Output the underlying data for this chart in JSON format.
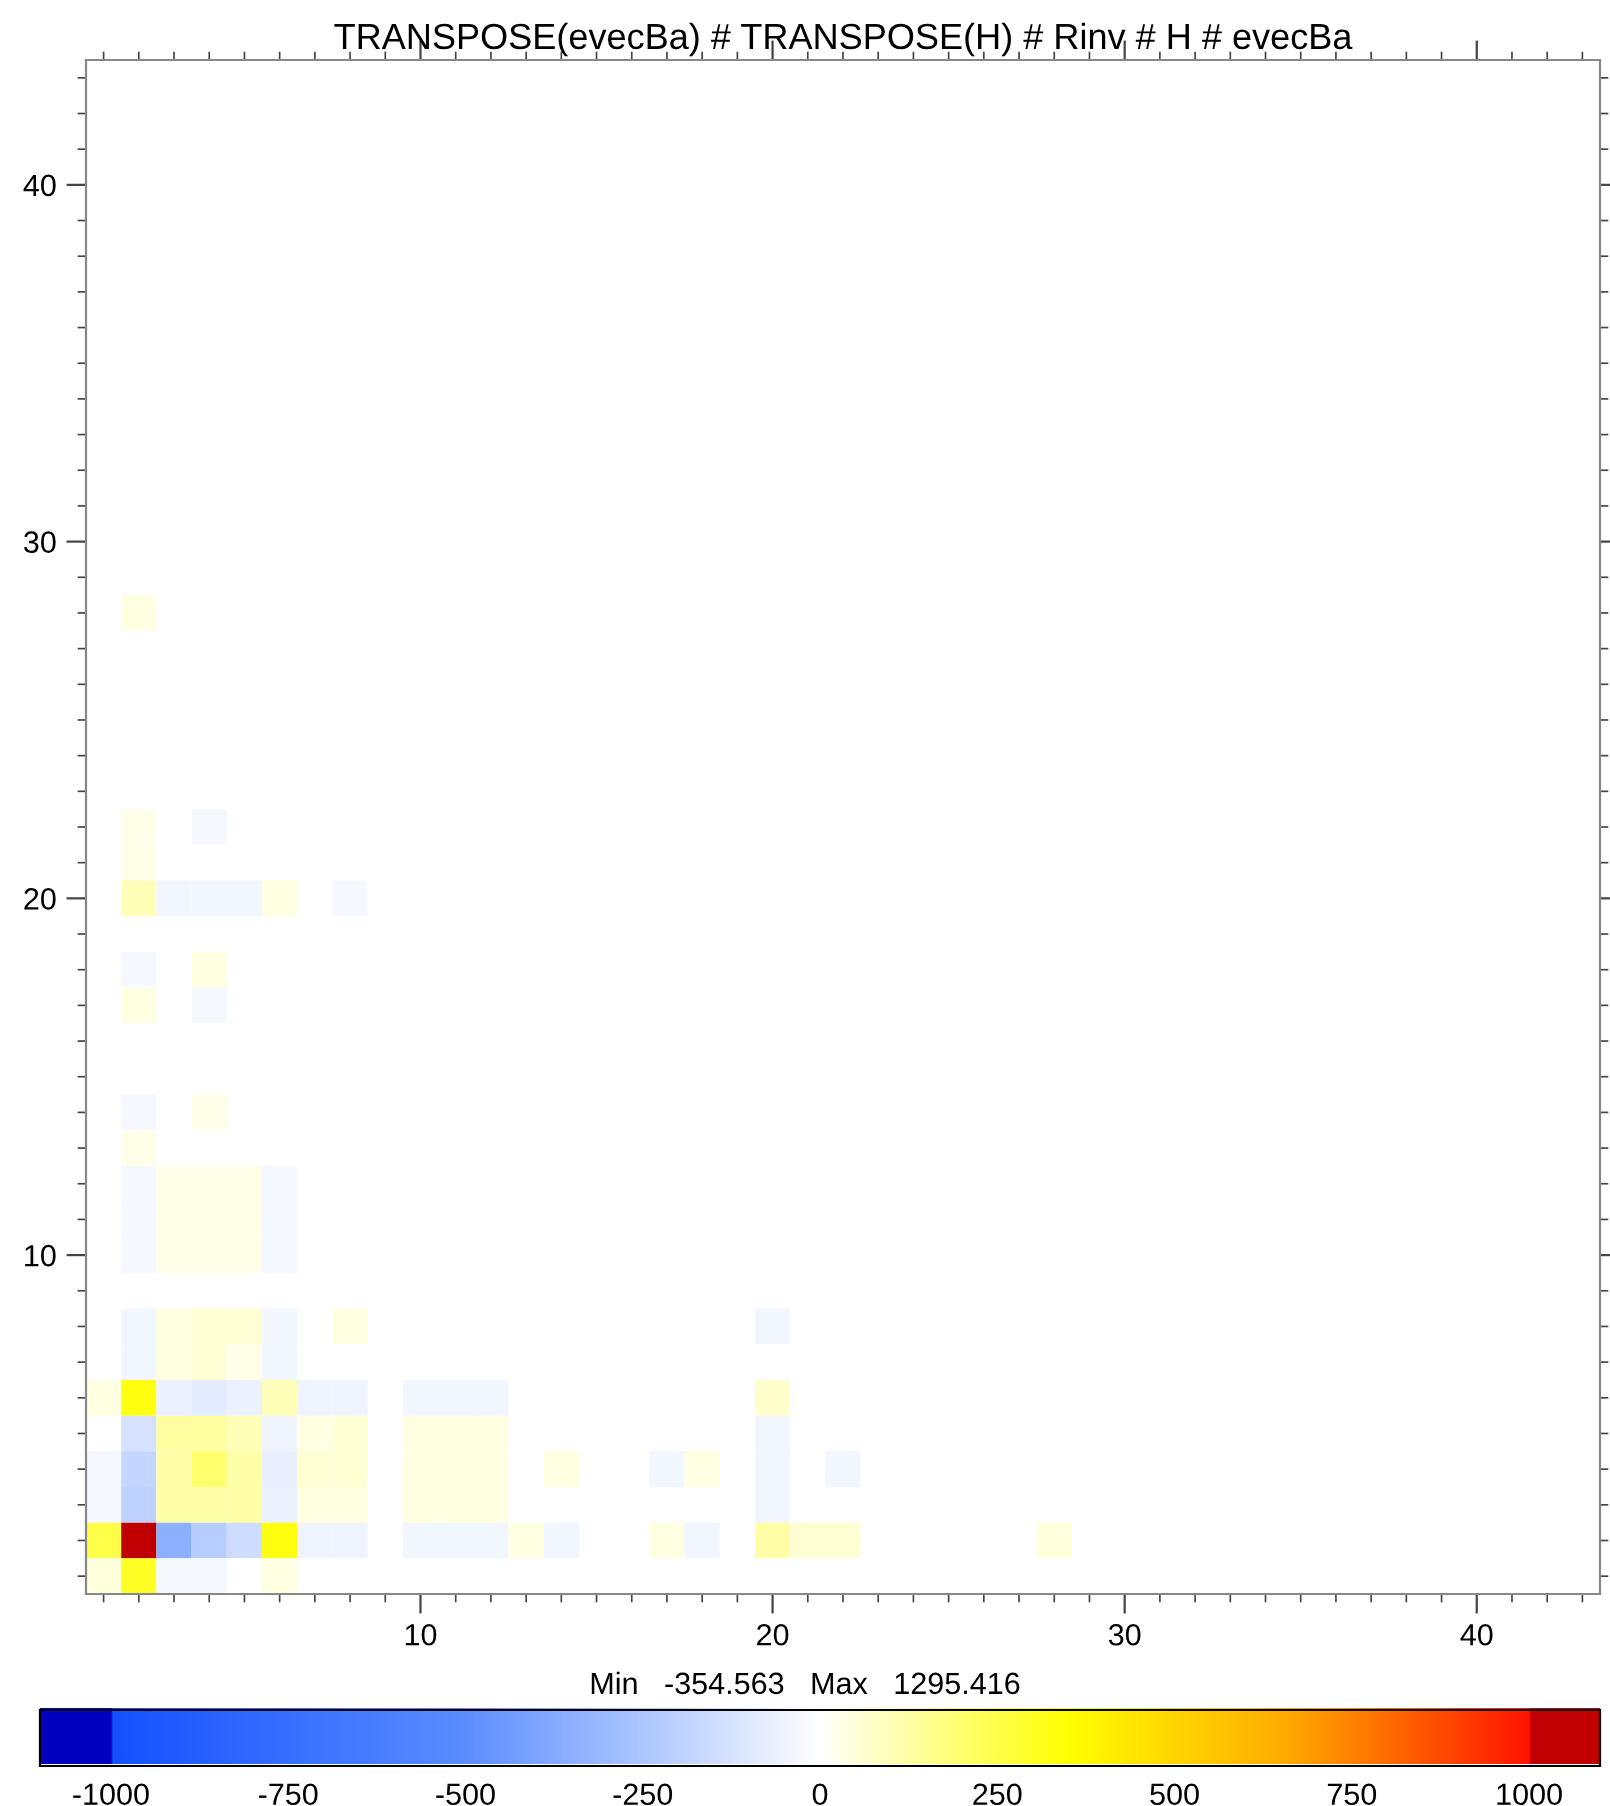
{
  "chart_data": {
    "type": "heatmap",
    "title": "TRANSPOSE(evecBa) # TRANSPOSE(H) # Rinv # H # evecBa",
    "annotations": [
      "Min   -354.563   Max   1295.416"
    ],
    "xlim": [
      0.5,
      43.5
    ],
    "ylim": [
      0.5,
      43.5
    ],
    "xticks": [
      {
        "value": 1,
        "label": null
      },
      {
        "value": 2,
        "label": null
      },
      {
        "value": 3,
        "label": null
      },
      {
        "value": 4,
        "label": null
      },
      {
        "value": 5,
        "label": null
      },
      {
        "value": 6,
        "label": null
      },
      {
        "value": 7,
        "label": null
      },
      {
        "value": 8,
        "label": null
      },
      {
        "value": 9,
        "label": null
      },
      10,
      {
        "value": 11,
        "label": null
      },
      {
        "value": 12,
        "label": null
      },
      {
        "value": 13,
        "label": null
      },
      {
        "value": 14,
        "label": null
      },
      {
        "value": 15,
        "label": null
      },
      {
        "value": 16,
        "label": null
      },
      {
        "value": 17,
        "label": null
      },
      {
        "value": 18,
        "label": null
      },
      {
        "value": 19,
        "label": null
      },
      20,
      {
        "value": 21,
        "label": null
      },
      {
        "value": 22,
        "label": null
      },
      {
        "value": 23,
        "label": null
      },
      {
        "value": 24,
        "label": null
      },
      {
        "value": 25,
        "label": null
      },
      {
        "value": 26,
        "label": null
      },
      {
        "value": 27,
        "label": null
      },
      {
        "value": 28,
        "label": null
      },
      {
        "value": 29,
        "label": null
      },
      30,
      {
        "value": 31,
        "label": null
      },
      {
        "value": 32,
        "label": null
      },
      {
        "value": 33,
        "label": null
      },
      {
        "value": 34,
        "label": null
      },
      {
        "value": 35,
        "label": null
      },
      {
        "value": 36,
        "label": null
      },
      {
        "value": 37,
        "label": null
      },
      {
        "value": 38,
        "label": null
      },
      {
        "value": 39,
        "label": null
      },
      40,
      {
        "value": 41,
        "label": null
      },
      {
        "value": 42,
        "label": null
      },
      {
        "value": 43,
        "label": null
      }
    ],
    "yticks": [
      {
        "value": 1,
        "label": null
      },
      {
        "value": 2,
        "label": null
      },
      {
        "value": 3,
        "label": null
      },
      {
        "value": 4,
        "label": null
      },
      {
        "value": 5,
        "label": null
      },
      {
        "value": 6,
        "label": null
      },
      {
        "value": 7,
        "label": null
      },
      {
        "value": 8,
        "label": null
      },
      {
        "value": 9,
        "label": null
      },
      10,
      {
        "value": 11,
        "label": null
      },
      {
        "value": 12,
        "label": null
      },
      {
        "value": 13,
        "label": null
      },
      {
        "value": 14,
        "label": null
      },
      {
        "value": 15,
        "label": null
      },
      {
        "value": 16,
        "label": null
      },
      {
        "value": 17,
        "label": null
      },
      {
        "value": 18,
        "label": null
      },
      {
        "value": 19,
        "label": null
      },
      20,
      {
        "value": 21,
        "label": null
      },
      {
        "value": 22,
        "label": null
      },
      {
        "value": 23,
        "label": null
      },
      {
        "value": 24,
        "label": null
      },
      {
        "value": 25,
        "label": null
      },
      {
        "value": 26,
        "label": null
      },
      {
        "value": 27,
        "label": null
      },
      {
        "value": 28,
        "label": null
      },
      {
        "value": 29,
        "label": null
      },
      30,
      {
        "value": 31,
        "label": null
      },
      {
        "value": 32,
        "label": null
      },
      {
        "value": 33,
        "label": null
      },
      {
        "value": 34,
        "label": null
      },
      {
        "value": 35,
        "label": null
      },
      {
        "value": 36,
        "label": null
      },
      {
        "value": 37,
        "label": null
      },
      {
        "value": 38,
        "label": null
      },
      {
        "value": 39,
        "label": null
      },
      40,
      {
        "value": 41,
        "label": null
      },
      {
        "value": 42,
        "label": null
      },
      {
        "value": 43,
        "label": null
      }
    ],
    "clim": [
      -1100,
      1100
    ],
    "cticks": [
      -1000,
      -750,
      -500,
      -250,
      0,
      250,
      500,
      750,
      1000
    ],
    "cells": [
      [
        0,
        0,
        0,
        0,
        0,
        0,
        0,
        0,
        0,
        0,
        0,
        0,
        0,
        0,
        0,
        0,
        0,
        0,
        0,
        0,
        0,
        0,
        0,
        0,
        0,
        0,
        0,
        0,
        0,
        0,
        0,
        0,
        0,
        0,
        0,
        0,
        0,
        0,
        0,
        0,
        0,
        0,
        0
      ],
      [
        0,
        0,
        0,
        0,
        0,
        0,
        0,
        0,
        0,
        0,
        0,
        0,
        0,
        0,
        0,
        0,
        0,
        0,
        0,
        0,
        0,
        0,
        0,
        0,
        0,
        0,
        0,
        0,
        0,
        0,
        0,
        0,
        0,
        0,
        0,
        0,
        0,
        0,
        0,
        0,
        0,
        0,
        0
      ],
      [
        0,
        0,
        0,
        0,
        0,
        0,
        0,
        0,
        0,
        0,
        0,
        0,
        0,
        0,
        0,
        0,
        0,
        0,
        0,
        0,
        0,
        0,
        0,
        0,
        0,
        0,
        0,
        0,
        0,
        0,
        0,
        0,
        0,
        0,
        0,
        0,
        0,
        0,
        0,
        0,
        0,
        0,
        0
      ],
      [
        0,
        0,
        0,
        0,
        0,
        0,
        0,
        0,
        0,
        0,
        0,
        0,
        0,
        0,
        0,
        0,
        0,
        0,
        0,
        0,
        0,
        0,
        0,
        0,
        0,
        0,
        0,
        0,
        0,
        0,
        0,
        0,
        0,
        0,
        0,
        0,
        0,
        0,
        0,
        0,
        0,
        0,
        0
      ],
      [
        0,
        0,
        0,
        0,
        0,
        0,
        0,
        0,
        0,
        0,
        0,
        0,
        0,
        0,
        0,
        0,
        0,
        0,
        0,
        0,
        0,
        0,
        0,
        0,
        0,
        0,
        0,
        0,
        0,
        0,
        0,
        0,
        0,
        0,
        0,
        0,
        0,
        0,
        0,
        0,
        0,
        0,
        0
      ],
      [
        0,
        0,
        0,
        0,
        0,
        0,
        0,
        0,
        0,
        0,
        0,
        0,
        0,
        0,
        0,
        0,
        0,
        0,
        0,
        0,
        0,
        0,
        0,
        0,
        0,
        0,
        0,
        0,
        0,
        0,
        0,
        0,
        0,
        0,
        0,
        0,
        0,
        0,
        0,
        0,
        0,
        0,
        0
      ],
      [
        0,
        0,
        0,
        0,
        0,
        0,
        0,
        0,
        0,
        0,
        0,
        0,
        0,
        0,
        0,
        0,
        0,
        0,
        0,
        0,
        0,
        0,
        0,
        0,
        0,
        0,
        0,
        0,
        0,
        0,
        0,
        0,
        0,
        0,
        0,
        0,
        0,
        0,
        0,
        0,
        0,
        0,
        0
      ],
      [
        0,
        0,
        0,
        0,
        0,
        0,
        0,
        0,
        0,
        0,
        0,
        0,
        0,
        0,
        0,
        0,
        0,
        0,
        0,
        0,
        0,
        0,
        0,
        0,
        0,
        0,
        0,
        0,
        0,
        0,
        0,
        0,
        0,
        0,
        0,
        0,
        0,
        0,
        0,
        0,
        0,
        0,
        0
      ],
      [
        0,
        0,
        0,
        0,
        0,
        0,
        0,
        0,
        0,
        0,
        0,
        0,
        0,
        0,
        0,
        0,
        0,
        0,
        0,
        0,
        0,
        0,
        0,
        0,
        0,
        0,
        0,
        0,
        0,
        0,
        0,
        0,
        0,
        0,
        0,
        0,
        0,
        0,
        0,
        0,
        0,
        0,
        0
      ],
      [
        0,
        0,
        0,
        0,
        0,
        0,
        0,
        0,
        0,
        0,
        0,
        0,
        0,
        0,
        0,
        0,
        0,
        0,
        0,
        0,
        0,
        0,
        0,
        0,
        0,
        0,
        0,
        0,
        0,
        0,
        0,
        0,
        0,
        0,
        0,
        0,
        0,
        0,
        0,
        0,
        0,
        0,
        0
      ],
      [
        0,
        0,
        0,
        0,
        0,
        0,
        0,
        0,
        0,
        0,
        0,
        0,
        0,
        0,
        0,
        0,
        0,
        0,
        0,
        0,
        0,
        0,
        0,
        0,
        0,
        0,
        0,
        0,
        0,
        0,
        0,
        0,
        0,
        0,
        0,
        0,
        0,
        0,
        0,
        0,
        0,
        0,
        0
      ],
      [
        0,
        0,
        0,
        0,
        0,
        0,
        0,
        0,
        0,
        0,
        0,
        0,
        0,
        0,
        0,
        0,
        0,
        0,
        0,
        0,
        0,
        0,
        0,
        0,
        0,
        0,
        0,
        0,
        0,
        0,
        0,
        0,
        0,
        0,
        0,
        0,
        0,
        0,
        0,
        0,
        0,
        0,
        0
      ],
      [
        0,
        0,
        0,
        0,
        0,
        0,
        0,
        0,
        0,
        0,
        0,
        0,
        0,
        0,
        0,
        0,
        0,
        0,
        0,
        0,
        0,
        0,
        0,
        0,
        0,
        0,
        0,
        0,
        0,
        0,
        0,
        0,
        0,
        0,
        0,
        0,
        0,
        0,
        0,
        0,
        0,
        0,
        0
      ],
      [
        0,
        0,
        0,
        0,
        0,
        0,
        0,
        0,
        0,
        0,
        0,
        0,
        0,
        0,
        0,
        0,
        0,
        0,
        0,
        0,
        0,
        0,
        0,
        0,
        0,
        0,
        0,
        0,
        0,
        0,
        0,
        0,
        0,
        0,
        0,
        0,
        0,
        0,
        0,
        0,
        0,
        0,
        0
      ],
      [
        0,
        0,
        0,
        0,
        0,
        0,
        0,
        0,
        0,
        0,
        0,
        0,
        0,
        0,
        0,
        0,
        0,
        0,
        0,
        0,
        0,
        0,
        0,
        0,
        0,
        0,
        0,
        0,
        0,
        0,
        0,
        0,
        0,
        0,
        0,
        0,
        0,
        0,
        0,
        0,
        0,
        0,
        0
      ],
      [
        0,
        40,
        0,
        0,
        0,
        0,
        0,
        0,
        0,
        0,
        0,
        0,
        0,
        0,
        0,
        0,
        0,
        0,
        0,
        0,
        0,
        0,
        0,
        0,
        0,
        0,
        0,
        0,
        0,
        0,
        0,
        0,
        0,
        0,
        0,
        0,
        0,
        0,
        0,
        0,
        0,
        0,
        0
      ],
      [
        0,
        0,
        0,
        0,
        0,
        0,
        0,
        0,
        0,
        0,
        0,
        0,
        0,
        0,
        0,
        0,
        0,
        0,
        0,
        0,
        0,
        0,
        0,
        0,
        0,
        0,
        0,
        0,
        0,
        0,
        0,
        0,
        0,
        0,
        0,
        0,
        0,
        0,
        0,
        0,
        0,
        0,
        0
      ],
      [
        0,
        0,
        0,
        0,
        0,
        0,
        0,
        0,
        0,
        0,
        0,
        0,
        0,
        0,
        0,
        0,
        0,
        0,
        0,
        0,
        0,
        0,
        0,
        0,
        0,
        0,
        0,
        0,
        0,
        0,
        0,
        0,
        0,
        0,
        0,
        0,
        0,
        0,
        0,
        0,
        0,
        0,
        0
      ],
      [
        0,
        0,
        0,
        0,
        0,
        0,
        0,
        0,
        0,
        0,
        0,
        0,
        0,
        0,
        0,
        0,
        0,
        0,
        0,
        0,
        0,
        0,
        0,
        0,
        0,
        0,
        0,
        0,
        0,
        0,
        0,
        0,
        0,
        0,
        0,
        0,
        0,
        0,
        0,
        0,
        0,
        0,
        0
      ],
      [
        0,
        0,
        0,
        0,
        0,
        0,
        0,
        0,
        0,
        0,
        0,
        0,
        0,
        0,
        0,
        0,
        0,
        0,
        0,
        0,
        0,
        0,
        0,
        0,
        0,
        0,
        0,
        0,
        0,
        0,
        0,
        0,
        0,
        0,
        0,
        0,
        0,
        0,
        0,
        0,
        0,
        0,
        0
      ],
      [
        0,
        0,
        0,
        0,
        0,
        0,
        0,
        0,
        0,
        0,
        0,
        0,
        0,
        0,
        0,
        0,
        0,
        0,
        0,
        0,
        0,
        0,
        0,
        0,
        0,
        0,
        0,
        0,
        0,
        0,
        0,
        0,
        0,
        0,
        0,
        0,
        0,
        0,
        0,
        0,
        0,
        0,
        0
      ],
      [
        0,
        30,
        0,
        -30,
        0,
        0,
        0,
        0,
        0,
        0,
        0,
        0,
        0,
        0,
        0,
        0,
        0,
        0,
        0,
        0,
        0,
        0,
        0,
        0,
        0,
        0,
        0,
        0,
        0,
        0,
        0,
        0,
        0,
        0,
        0,
        0,
        0,
        0,
        0,
        0,
        0,
        0,
        0
      ],
      [
        0,
        30,
        0,
        0,
        0,
        0,
        0,
        0,
        0,
        0,
        0,
        0,
        0,
        0,
        0,
        0,
        0,
        0,
        0,
        0,
        0,
        0,
        0,
        0,
        0,
        0,
        0,
        0,
        0,
        0,
        0,
        0,
        0,
        0,
        0,
        0,
        0,
        0,
        0,
        0,
        0,
        0,
        0
      ],
      [
        0,
        100,
        -40,
        -40,
        -40,
        40,
        0,
        -30,
        0,
        0,
        0,
        0,
        0,
        0,
        0,
        0,
        0,
        0,
        0,
        0,
        0,
        0,
        0,
        0,
        0,
        0,
        0,
        0,
        0,
        0,
        0,
        0,
        0,
        0,
        0,
        0,
        0,
        0,
        0,
        0,
        0,
        0,
        0
      ],
      [
        0,
        0,
        0,
        0,
        0,
        0,
        0,
        0,
        0,
        0,
        0,
        0,
        0,
        0,
        0,
        0,
        0,
        0,
        0,
        0,
        0,
        0,
        0,
        0,
        0,
        0,
        0,
        0,
        0,
        0,
        0,
        0,
        0,
        0,
        0,
        0,
        0,
        0,
        0,
        0,
        0,
        0,
        0
      ],
      [
        0,
        -30,
        0,
        40,
        0,
        0,
        0,
        0,
        0,
        0,
        0,
        0,
        0,
        0,
        0,
        0,
        0,
        0,
        0,
        0,
        0,
        0,
        0,
        0,
        0,
        0,
        0,
        0,
        0,
        0,
        0,
        0,
        0,
        0,
        0,
        0,
        0,
        0,
        0,
        0,
        0,
        0,
        0
      ],
      [
        0,
        40,
        0,
        -30,
        0,
        0,
        0,
        0,
        0,
        0,
        0,
        0,
        0,
        0,
        0,
        0,
        0,
        0,
        0,
        0,
        0,
        0,
        0,
        0,
        0,
        0,
        0,
        0,
        0,
        0,
        0,
        0,
        0,
        0,
        0,
        0,
        0,
        0,
        0,
        0,
        0,
        0,
        0
      ],
      [
        0,
        0,
        0,
        0,
        0,
        0,
        0,
        0,
        0,
        0,
        0,
        0,
        0,
        0,
        0,
        0,
        0,
        0,
        0,
        0,
        0,
        0,
        0,
        0,
        0,
        0,
        0,
        0,
        0,
        0,
        0,
        0,
        0,
        0,
        0,
        0,
        0,
        0,
        0,
        0,
        0,
        0,
        0
      ],
      [
        0,
        0,
        0,
        0,
        0,
        0,
        0,
        0,
        0,
        0,
        0,
        0,
        0,
        0,
        0,
        0,
        0,
        0,
        0,
        0,
        0,
        0,
        0,
        0,
        0,
        0,
        0,
        0,
        0,
        0,
        0,
        0,
        0,
        0,
        0,
        0,
        0,
        0,
        0,
        0,
        0,
        0,
        0
      ],
      [
        0,
        -30,
        0,
        30,
        0,
        0,
        0,
        0,
        0,
        0,
        0,
        0,
        0,
        0,
        0,
        0,
        0,
        0,
        0,
        0,
        0,
        0,
        0,
        0,
        0,
        0,
        0,
        0,
        0,
        0,
        0,
        0,
        0,
        0,
        0,
        0,
        0,
        0,
        0,
        0,
        0,
        0,
        0
      ],
      [
        0,
        30,
        0,
        0,
        0,
        0,
        0,
        0,
        0,
        0,
        0,
        0,
        0,
        0,
        0,
        0,
        0,
        0,
        0,
        0,
        0,
        0,
        0,
        0,
        0,
        0,
        0,
        0,
        0,
        0,
        0,
        0,
        0,
        0,
        0,
        0,
        0,
        0,
        0,
        0,
        0,
        0,
        0
      ],
      [
        0,
        -30,
        30,
        30,
        30,
        -30,
        0,
        0,
        0,
        0,
        0,
        0,
        0,
        0,
        0,
        0,
        0,
        0,
        0,
        0,
        0,
        0,
        0,
        0,
        0,
        0,
        0,
        0,
        0,
        0,
        0,
        0,
        0,
        0,
        0,
        0,
        0,
        0,
        0,
        0,
        0,
        0,
        0
      ],
      [
        0,
        -30,
        30,
        30,
        30,
        -30,
        0,
        0,
        0,
        0,
        0,
        0,
        0,
        0,
        0,
        0,
        0,
        0,
        0,
        0,
        0,
        0,
        0,
        0,
        0,
        0,
        0,
        0,
        0,
        0,
        0,
        0,
        0,
        0,
        0,
        0,
        0,
        0,
        0,
        0,
        0,
        0,
        0
      ],
      [
        0,
        -30,
        30,
        30,
        30,
        -30,
        0,
        0,
        0,
        0,
        0,
        0,
        0,
        0,
        0,
        0,
        0,
        0,
        0,
        0,
        0,
        0,
        0,
        0,
        0,
        0,
        0,
        0,
        0,
        0,
        0,
        0,
        0,
        0,
        0,
        0,
        0,
        0,
        0,
        0,
        0,
        0,
        0
      ],
      [
        0,
        0,
        0,
        0,
        0,
        0,
        0,
        0,
        0,
        0,
        0,
        0,
        0,
        0,
        0,
        0,
        0,
        0,
        0,
        0,
        0,
        0,
        0,
        0,
        0,
        0,
        0,
        0,
        0,
        0,
        0,
        0,
        0,
        0,
        0,
        0,
        0,
        0,
        0,
        0,
        0,
        0,
        0
      ],
      [
        0,
        -40,
        40,
        60,
        60,
        -40,
        0,
        40,
        0,
        0,
        0,
        0,
        0,
        0,
        0,
        0,
        0,
        0,
        0,
        -40,
        0,
        0,
        0,
        0,
        0,
        0,
        0,
        0,
        0,
        0,
        0,
        0,
        0,
        0,
        0,
        0,
        0,
        0,
        0,
        0,
        0,
        0,
        0
      ],
      [
        0,
        -40,
        40,
        60,
        30,
        -40,
        0,
        0,
        0,
        0,
        0,
        0,
        0,
        0,
        0,
        0,
        0,
        0,
        0,
        0,
        0,
        0,
        0,
        0,
        0,
        0,
        0,
        0,
        0,
        0,
        0,
        0,
        0,
        0,
        0,
        0,
        0,
        0,
        0,
        0,
        0,
        0,
        0
      ],
      [
        40,
        330,
        -60,
        -90,
        -60,
        100,
        -50,
        -50,
        0,
        -40,
        -40,
        -40,
        0,
        0,
        0,
        0,
        0,
        0,
        0,
        70,
        0,
        0,
        0,
        0,
        0,
        0,
        0,
        0,
        0,
        0,
        0,
        0,
        0,
        0,
        0,
        0,
        0,
        0,
        0,
        0,
        0,
        0,
        0
      ],
      [
        0,
        -130,
        130,
        130,
        100,
        -50,
        40,
        60,
        0,
        40,
        40,
        40,
        0,
        0,
        0,
        0,
        0,
        0,
        0,
        -40,
        0,
        0,
        0,
        0,
        0,
        0,
        0,
        0,
        0,
        0,
        0,
        0,
        0,
        0,
        0,
        0,
        0,
        0,
        0,
        0,
        0,
        0,
        0
      ],
      [
        -30,
        -180,
        120,
        200,
        120,
        -70,
        60,
        60,
        0,
        40,
        40,
        40,
        0,
        40,
        0,
        0,
        -40,
        40,
        0,
        -40,
        0,
        -40,
        0,
        0,
        0,
        0,
        0,
        0,
        0,
        0,
        0,
        0,
        0,
        0,
        0,
        0,
        0,
        0,
        0,
        0,
        0,
        0,
        0
      ],
      [
        -30,
        -200,
        120,
        120,
        120,
        -60,
        40,
        40,
        0,
        40,
        40,
        40,
        0,
        0,
        0,
        0,
        0,
        0,
        0,
        -40,
        0,
        0,
        0,
        0,
        0,
        0,
        0,
        0,
        0,
        0,
        0,
        0,
        0,
        0,
        0,
        0,
        0,
        0,
        0,
        0,
        0,
        0,
        0
      ],
      [
        250,
        1295.416,
        -354.563,
        -220,
        -150,
        330,
        -50,
        -50,
        0,
        -40,
        -40,
        -40,
        40,
        -40,
        0,
        0,
        40,
        -40,
        0,
        120,
        60,
        60,
        0,
        0,
        0,
        0,
        0,
        50,
        0,
        0,
        0,
        0,
        0,
        0,
        0,
        0,
        0,
        0,
        0,
        0,
        0,
        0,
        0
      ],
      [
        50,
        300,
        -30,
        -30,
        0,
        40,
        0,
        0,
        0,
        0,
        0,
        0,
        0,
        0,
        0,
        0,
        0,
        0,
        0,
        0,
        0,
        0,
        0,
        0,
        0,
        0,
        0,
        0,
        0,
        0,
        0,
        0,
        0,
        0,
        0,
        0,
        0,
        0,
        0,
        0,
        0,
        0,
        0
      ]
    ]
  }
}
